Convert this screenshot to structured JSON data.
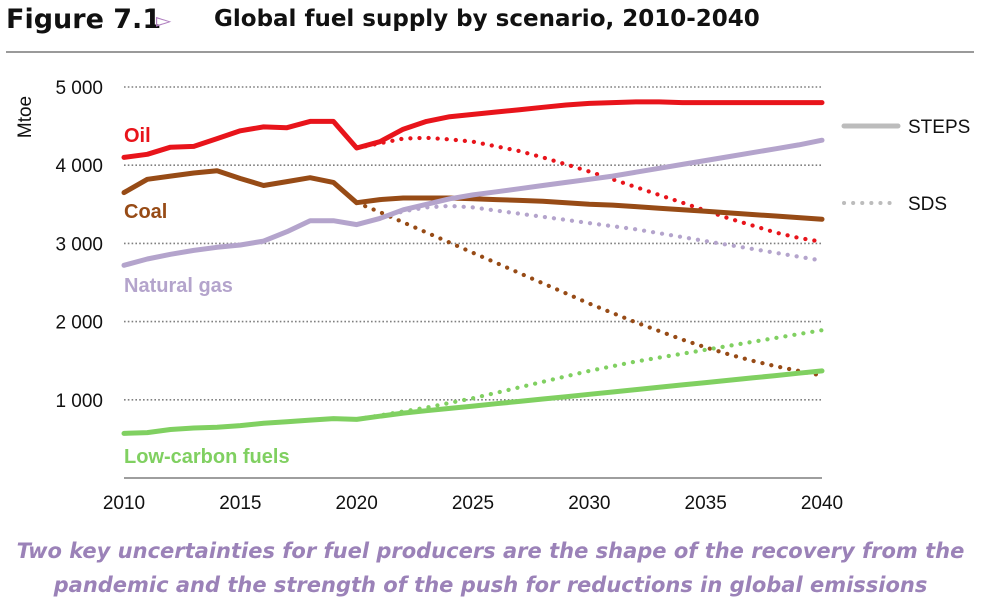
{
  "figure": {
    "label": "Figure 7.1",
    "arrow": "▻",
    "title": "Global fuel supply by scenario, 2010-2040"
  },
  "caption": {
    "line1": "Two key uncertainties for fuel producers are the shape of the recovery from the",
    "line2": "pandemic and the strength of the push for reductions in global emissions"
  },
  "chart_data": {
    "type": "line",
    "title": "Global fuel supply by scenario, 2010-2040",
    "xlabel": "",
    "ylabel": "Mtoe",
    "xlim": [
      2010,
      2040
    ],
    "ylim": [
      0,
      5000
    ],
    "x_ticks": [
      2010,
      2015,
      2020,
      2025,
      2030,
      2035,
      2040
    ],
    "x_tick_labels": [
      "2010",
      "2015",
      "2020",
      "2025",
      "2030",
      "2035",
      "2040"
    ],
    "y_ticks": [
      1000,
      2000,
      3000,
      4000,
      5000
    ],
    "y_tick_labels": [
      "1 000",
      "2 000",
      "3 000",
      "4 000",
      "5 000"
    ],
    "grid": "horizontal dotted",
    "legend": {
      "position": "right",
      "entries": [
        {
          "label": "STEPS",
          "style": "solid"
        },
        {
          "label": "SDS",
          "style": "dotted"
        }
      ]
    },
    "colors": {
      "oil": "#e8141b",
      "coal": "#974b16",
      "gas": "#b4a4cc",
      "low": "#80d061",
      "legend_line": "#bcbcbc",
      "grid": "#7f7f7f"
    },
    "series": [
      {
        "name": "Oil",
        "key": "oil",
        "scenario": "STEPS",
        "x": [
          2010,
          2011,
          2012,
          2013,
          2014,
          2015,
          2016,
          2017,
          2018,
          2019,
          2020,
          2021,
          2022,
          2023,
          2024,
          2025,
          2026,
          2027,
          2028,
          2029,
          2030,
          2031,
          2032,
          2033,
          2034,
          2035,
          2036,
          2037,
          2038,
          2039,
          2040
        ],
        "values": [
          4100,
          4140,
          4230,
          4240,
          4340,
          4440,
          4490,
          4480,
          4560,
          4560,
          4220,
          4300,
          4460,
          4560,
          4620,
          4650,
          4680,
          4710,
          4740,
          4770,
          4790,
          4800,
          4810,
          4810,
          4800,
          4800,
          4800,
          4800,
          4800,
          4800,
          4800
        ]
      },
      {
        "name": "Oil",
        "key": "oil",
        "scenario": "SDS",
        "x": [
          2020,
          2021,
          2022,
          2023,
          2024,
          2025,
          2026,
          2027,
          2028,
          2029,
          2030,
          2031,
          2032,
          2033,
          2034,
          2035,
          2036,
          2037,
          2038,
          2039,
          2040
        ],
        "values": [
          4220,
          4280,
          4340,
          4350,
          4330,
          4300,
          4240,
          4180,
          4100,
          4010,
          3920,
          3820,
          3720,
          3620,
          3520,
          3420,
          3320,
          3230,
          3140,
          3070,
          3020
        ]
      },
      {
        "name": "Coal",
        "key": "coal",
        "scenario": "STEPS",
        "x": [
          2010,
          2011,
          2012,
          2013,
          2014,
          2015,
          2016,
          2017,
          2018,
          2019,
          2020,
          2021,
          2022,
          2023,
          2024,
          2025,
          2026,
          2027,
          2028,
          2029,
          2030,
          2031,
          2032,
          2033,
          2034,
          2035,
          2036,
          2037,
          2038,
          2039,
          2040
        ],
        "values": [
          3650,
          3820,
          3860,
          3900,
          3930,
          3830,
          3740,
          3790,
          3840,
          3780,
          3520,
          3560,
          3580,
          3580,
          3580,
          3570,
          3560,
          3550,
          3540,
          3520,
          3500,
          3490,
          3470,
          3450,
          3430,
          3410,
          3390,
          3370,
          3350,
          3330,
          3310
        ]
      },
      {
        "name": "Coal",
        "key": "coal",
        "scenario": "SDS",
        "x": [
          2020,
          2021,
          2022,
          2023,
          2024,
          2025,
          2026,
          2027,
          2028,
          2029,
          2030,
          2031,
          2032,
          2033,
          2034,
          2035,
          2036,
          2037,
          2038,
          2039,
          2040
        ],
        "values": [
          3520,
          3400,
          3270,
          3140,
          3010,
          2880,
          2750,
          2620,
          2490,
          2360,
          2230,
          2110,
          1990,
          1880,
          1770,
          1670,
          1580,
          1500,
          1430,
          1370,
          1310
        ]
      },
      {
        "name": "Natural gas",
        "key": "gas",
        "scenario": "STEPS",
        "x": [
          2010,
          2011,
          2012,
          2013,
          2014,
          2015,
          2016,
          2017,
          2018,
          2019,
          2020,
          2021,
          2022,
          2023,
          2024,
          2025,
          2026,
          2027,
          2028,
          2029,
          2030,
          2031,
          2032,
          2033,
          2034,
          2035,
          2036,
          2037,
          2038,
          2039,
          2040
        ],
        "values": [
          2720,
          2800,
          2860,
          2910,
          2950,
          2980,
          3030,
          3150,
          3290,
          3290,
          3240,
          3320,
          3430,
          3500,
          3570,
          3620,
          3660,
          3700,
          3740,
          3780,
          3820,
          3860,
          3910,
          3960,
          4010,
          4060,
          4110,
          4160,
          4210,
          4260,
          4320
        ]
      },
      {
        "name": "Natural gas",
        "key": "gas",
        "scenario": "SDS",
        "x": [
          2020,
          2021,
          2022,
          2023,
          2024,
          2025,
          2026,
          2027,
          2028,
          2029,
          2030,
          2031,
          2032,
          2033,
          2034,
          2035,
          2036,
          2037,
          2038,
          2039,
          2040
        ],
        "values": [
          3240,
          3320,
          3410,
          3460,
          3480,
          3460,
          3420,
          3380,
          3340,
          3300,
          3260,
          3220,
          3180,
          3130,
          3080,
          3030,
          2980,
          2930,
          2880,
          2830,
          2780
        ]
      },
      {
        "name": "Low-carbon fuels",
        "key": "low",
        "scenario": "STEPS",
        "x": [
          2010,
          2011,
          2012,
          2013,
          2014,
          2015,
          2016,
          2017,
          2018,
          2019,
          2020,
          2021,
          2022,
          2023,
          2024,
          2025,
          2026,
          2027,
          2028,
          2029,
          2030,
          2031,
          2032,
          2033,
          2034,
          2035,
          2036,
          2037,
          2038,
          2039,
          2040
        ],
        "values": [
          570,
          580,
          620,
          640,
          650,
          670,
          700,
          720,
          740,
          760,
          750,
          790,
          830,
          860,
          890,
          920,
          950,
          980,
          1010,
          1040,
          1070,
          1100,
          1130,
          1160,
          1190,
          1220,
          1250,
          1280,
          1310,
          1340,
          1370
        ]
      },
      {
        "name": "Low-carbon fuels",
        "key": "low",
        "scenario": "SDS",
        "x": [
          2020,
          2021,
          2022,
          2023,
          2024,
          2025,
          2026,
          2027,
          2028,
          2029,
          2030,
          2031,
          2032,
          2033,
          2034,
          2035,
          2036,
          2037,
          2038,
          2039,
          2040
        ],
        "values": [
          750,
          800,
          850,
          900,
          960,
          1020,
          1090,
          1160,
          1230,
          1300,
          1370,
          1430,
          1490,
          1540,
          1590,
          1640,
          1690,
          1740,
          1790,
          1840,
          1890
        ]
      }
    ],
    "annotations": [
      {
        "text": "Oil",
        "key": "oil"
      },
      {
        "text": "Coal",
        "key": "coal"
      },
      {
        "text": "Natural gas",
        "key": "gas"
      },
      {
        "text": "Low-carbon fuels",
        "key": "low"
      }
    ]
  }
}
